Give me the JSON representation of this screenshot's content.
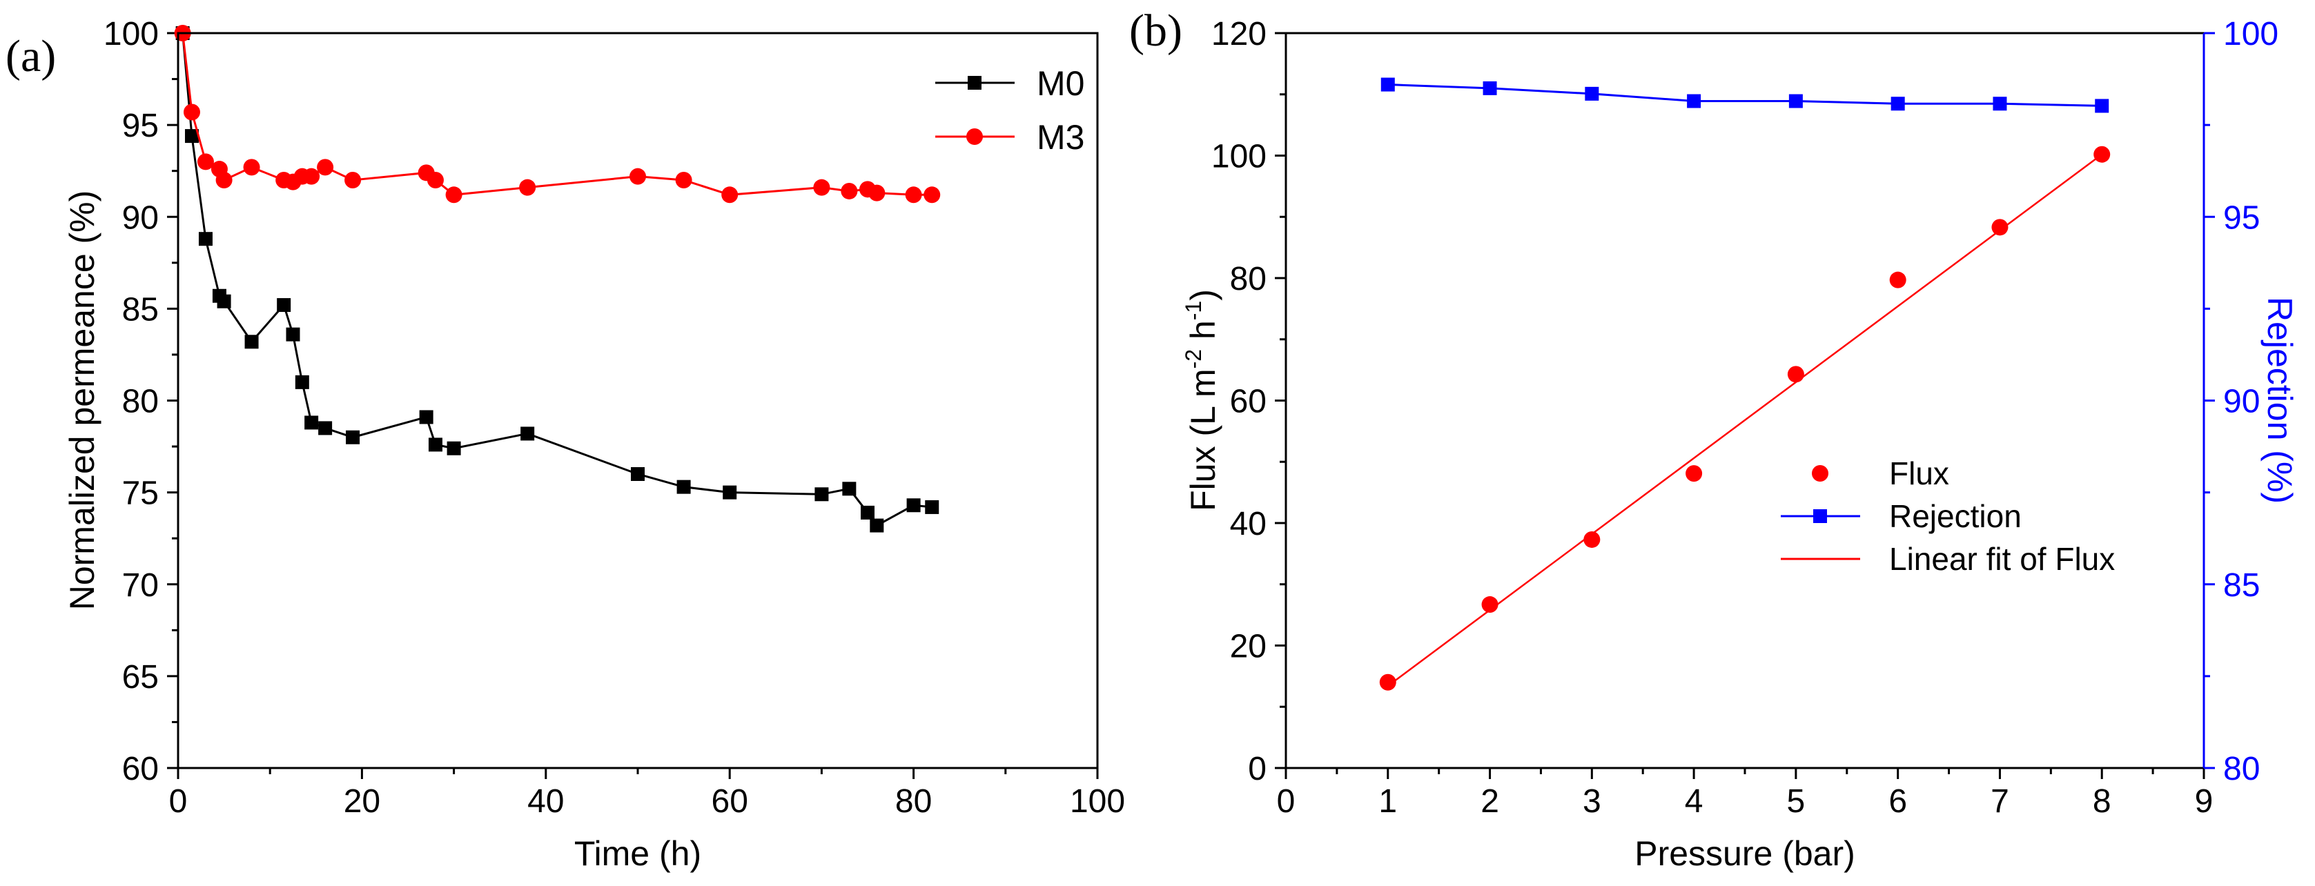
{
  "chart_data": [
    {
      "type": "line",
      "panel_label": "(a)",
      "xlabel": "Time (h)",
      "ylabel": "Normalized permeance (%)",
      "xlim": [
        0,
        100
      ],
      "ylim": [
        60,
        100
      ],
      "xticks": [
        "0",
        "20",
        "40",
        "60",
        "80",
        "100"
      ],
      "yticks": [
        "60",
        "65",
        "70",
        "75",
        "80",
        "85",
        "90",
        "95",
        "100"
      ],
      "legend_position": "top-right",
      "series": [
        {
          "name": "M0",
          "color": "#000000",
          "marker": "square",
          "x": [
            0.5,
            1.5,
            3,
            4.5,
            5,
            8,
            11.5,
            12.5,
            13.5,
            14.5,
            16,
            19,
            27,
            28,
            30,
            38,
            50,
            55,
            60,
            70,
            73,
            75,
            76,
            80,
            82
          ],
          "y": [
            100,
            94.4,
            88.8,
            85.7,
            85.4,
            83.2,
            85.2,
            83.6,
            81.0,
            78.8,
            78.5,
            78.0,
            79.1,
            77.6,
            77.4,
            78.2,
            76.0,
            75.3,
            75.0,
            74.9,
            75.2,
            73.9,
            73.2,
            74.3,
            74.2
          ]
        },
        {
          "name": "M3",
          "color": "#ff0000",
          "marker": "circle",
          "x": [
            0.5,
            1.5,
            3,
            4.5,
            5,
            8,
            11.5,
            12.5,
            13.5,
            14.5,
            16,
            19,
            27,
            28,
            30,
            38,
            50,
            55,
            60,
            70,
            73,
            75,
            76,
            80,
            82
          ],
          "y": [
            100,
            95.7,
            93.0,
            92.6,
            92.0,
            92.7,
            92.0,
            91.9,
            92.2,
            92.2,
            92.7,
            92.0,
            92.4,
            92.0,
            91.2,
            91.6,
            92.2,
            92.0,
            91.2,
            91.6,
            91.4,
            91.5,
            91.3,
            91.2,
            91.2
          ]
        }
      ]
    },
    {
      "type": "scatter",
      "panel_label": "(b)",
      "xlabel": "Pressure (bar)",
      "ylabel_left": "Flux (L m^-2 h^-1)",
      "ylabel_left_parts": [
        "Flux (L m",
        "-2",
        " h",
        "-1",
        ")"
      ],
      "ylabel_right": "Rejection (%)",
      "xlim": [
        0,
        9
      ],
      "ylim_left": [
        0,
        120
      ],
      "ylim_right": [
        80,
        100
      ],
      "xticks": [
        "0",
        "1",
        "2",
        "3",
        "4",
        "5",
        "6",
        "7",
        "8",
        "9"
      ],
      "yticks_left": [
        "0",
        "20",
        "40",
        "60",
        "80",
        "100",
        "120"
      ],
      "yticks_right": [
        "80",
        "85",
        "90",
        "95",
        "100"
      ],
      "right_axis_color": "#0000ff",
      "legend_position": "center-right",
      "series": [
        {
          "name": "Flux",
          "axis": "left",
          "color": "#ff0000",
          "marker": "circle",
          "line": false,
          "x": [
            1,
            2,
            3,
            4,
            5,
            6,
            7,
            8
          ],
          "y": [
            14,
            26.7,
            37.3,
            48.1,
            64.3,
            79.7,
            88.3,
            100.2
          ]
        },
        {
          "name": "Rejection",
          "axis": "right",
          "color": "#0000ff",
          "marker": "square",
          "line": true,
          "x": [
            1,
            2,
            3,
            4,
            5,
            6,
            7,
            8
          ],
          "y": [
            98.6,
            98.5,
            98.35,
            98.15,
            98.15,
            98.08,
            98.08,
            98.02
          ]
        },
        {
          "name": "Linear fit of Flux",
          "axis": "left",
          "color": "#ff0000",
          "marker": "none",
          "line": true,
          "x": [
            1,
            8
          ],
          "y": [
            13.4,
            100.2
          ]
        }
      ]
    }
  ]
}
